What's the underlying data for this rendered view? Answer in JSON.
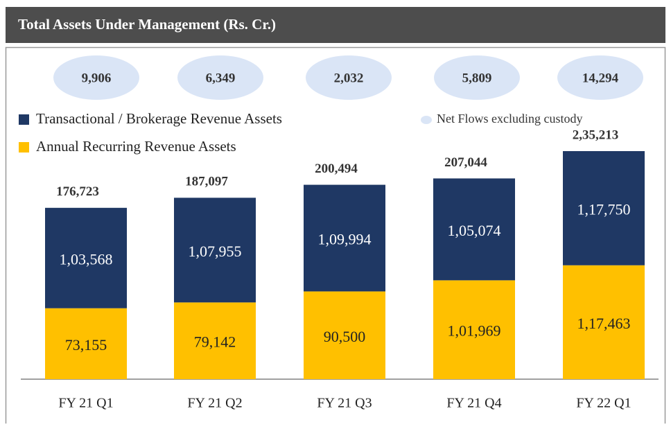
{
  "chart_data": {
    "type": "stacked_bar",
    "title": "Total Assets Under Management (Rs. Cr.)",
    "categories": [
      "FY 21 Q1",
      "FY 21 Q2",
      "FY 21 Q3",
      "FY 21 Q4",
      "FY 22 Q1"
    ],
    "series": [
      {
        "name": "Annual Recurring Revenue Assets",
        "color": "#ffc000",
        "values": [
          73155,
          79142,
          90500,
          101969,
          117463
        ],
        "value_labels": [
          "73,155",
          "79,142",
          "90,500",
          "1,01,969",
          "1,17,463"
        ]
      },
      {
        "name": "Transactional / Brokerage Revenue Assets",
        "color": "#1f3864",
        "values": [
          103568,
          107955,
          109994,
          105074,
          117750
        ],
        "value_labels": [
          "1,03,568",
          "1,07,955",
          "1,09,994",
          "1,05,074",
          "1,17,750"
        ]
      }
    ],
    "totals": [
      176723,
      187097,
      200494,
      207044,
      235213
    ],
    "total_labels": [
      "176,723",
      "187,097",
      "200,494",
      "207,044",
      "2,35,213"
    ],
    "net_flows": {
      "name": "Net Flows excluding custody",
      "color": "#dae5f6",
      "values": [
        9906,
        6349,
        2032,
        5809,
        14294
      ],
      "value_labels": [
        "9,906",
        "6,349",
        "2,032",
        "5,809",
        "14,294"
      ]
    }
  }
}
